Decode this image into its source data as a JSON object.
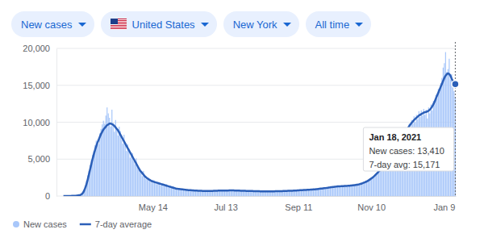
{
  "chart_data": {
    "type": "bar",
    "categories": [
      null,
      null,
      null,
      null,
      null,
      null,
      null,
      null,
      null,
      null,
      null,
      null,
      null,
      null,
      null,
      null,
      null,
      null,
      null,
      null,
      null,
      null,
      null,
      null,
      null,
      null,
      null,
      null,
      null,
      null,
      null,
      null,
      null,
      null,
      null,
      null,
      null,
      null,
      null,
      null,
      null,
      null,
      null,
      null,
      null,
      null,
      null,
      null,
      null,
      null,
      null,
      null,
      null,
      null,
      null,
      null,
      null,
      null,
      null,
      null,
      null,
      null,
      null,
      null,
      null,
      null,
      null,
      null,
      null,
      null,
      null,
      null,
      null,
      null,
      "May 14",
      null,
      null,
      null,
      null,
      null,
      null,
      null,
      null,
      null,
      null,
      null,
      null,
      null,
      null,
      null,
      null,
      null,
      null,
      null,
      null,
      null,
      null,
      null,
      null,
      null,
      null,
      null,
      null,
      null,
      null,
      null,
      null,
      null,
      null,
      null,
      null,
      null,
      null,
      null,
      null,
      null,
      null,
      null,
      null,
      null,
      null,
      null,
      null,
      null,
      null,
      null,
      null,
      null,
      null,
      null,
      null,
      null,
      null,
      null,
      "Jul 13",
      null,
      null,
      null,
      null,
      null,
      null,
      null,
      null,
      null,
      null,
      null,
      null,
      null,
      null,
      null,
      null,
      null,
      null,
      null,
      null,
      null,
      null,
      null,
      null,
      null,
      null,
      null,
      null,
      null,
      null,
      null,
      null,
      null,
      null,
      null,
      null,
      null,
      null,
      null,
      null,
      null,
      null,
      null,
      null,
      null,
      null,
      null,
      null,
      null,
      null,
      null,
      null,
      null,
      null,
      null,
      null,
      null,
      null,
      null,
      "Sep 11",
      null,
      null,
      null,
      null,
      null,
      null,
      null,
      null,
      null,
      null,
      null,
      null,
      null,
      null,
      null,
      null,
      null,
      null,
      null,
      null,
      null,
      null,
      null,
      null,
      null,
      null,
      null,
      null,
      null,
      null,
      null,
      null,
      null,
      null,
      null,
      null,
      null,
      null,
      null,
      null,
      null,
      null,
      null,
      null,
      null,
      null,
      null,
      null,
      null,
      null,
      null,
      null,
      null,
      null,
      null,
      null,
      null,
      null,
      null,
      "Nov 10",
      null,
      null,
      null,
      null,
      null,
      null,
      null,
      null,
      null,
      null,
      null,
      null,
      null,
      null,
      null,
      null,
      null,
      null,
      null,
      null,
      null,
      null,
      null,
      null,
      null,
      null,
      null,
      null,
      null,
      null,
      null,
      null,
      null,
      null,
      null,
      null,
      null,
      null,
      null,
      null,
      null,
      null,
      null,
      null,
      null,
      null,
      null,
      null,
      null,
      null,
      null,
      null,
      null,
      null,
      null,
      null,
      null,
      null,
      null,
      "Jan 9",
      null,
      null,
      null,
      null,
      null,
      null,
      null,
      null,
      null
    ],
    "series": [
      {
        "name": "New cases",
        "type": "bar",
        "color": "#a8c7fa",
        "values": [
          0,
          0,
          0,
          1,
          2,
          8,
          16,
          20,
          30,
          40,
          50,
          60,
          80,
          130,
          190,
          330,
          520,
          900,
          1400,
          2100,
          2800,
          3400,
          4200,
          4900,
          5600,
          6100,
          6900,
          7500,
          7200,
          7000,
          8500,
          9100,
          9700,
          10200,
          9800,
          10900,
          12000,
          11200,
          10600,
          9400,
          11700,
          9900,
          8700,
          10300,
          9000,
          8200,
          9400,
          8800,
          7600,
          7100,
          8300,
          6900,
          6100,
          7000,
          6400,
          5200,
          5900,
          5800,
          4700,
          4300,
          5100,
          4200,
          3500,
          3700,
          3100,
          2700,
          3400,
          2800,
          2300,
          2200,
          2500,
          2300,
          1900,
          1800,
          2200,
          2100,
          1700,
          1600,
          1900,
          1800,
          1500,
          1700,
          1600,
          1300,
          1400,
          1600,
          1200,
          1200,
          1400,
          1100,
          1100,
          1300,
          1000,
          900,
          1100,
          1000,
          850,
          900,
          1000,
          800,
          900,
          800,
          780,
          870,
          760,
          820,
          720,
          800,
          700,
          760,
          780,
          690,
          740,
          650,
          760,
          700,
          640,
          720,
          660,
          700,
          620,
          700,
          740,
          650,
          780,
          700,
          680,
          780,
          710,
          760,
          700,
          760,
          780,
          690,
          800,
          720,
          730,
          810,
          740,
          790,
          720,
          770,
          700,
          780,
          710,
          760,
          690,
          740,
          670,
          720,
          660,
          720,
          680,
          650,
          720,
          640,
          700,
          630,
          690,
          620,
          680,
          640,
          610,
          670,
          620,
          660,
          600,
          650,
          610,
          660,
          600,
          660,
          620,
          680,
          610,
          680,
          630,
          700,
          640,
          690,
          640,
          700,
          650,
          720,
          670,
          740,
          690,
          750,
          700,
          760,
          710,
          780,
          730,
          800,
          750,
          820,
          770,
          840,
          790,
          860,
          800,
          880,
          830,
          900,
          850,
          920,
          870,
          950,
          900,
          980,
          930,
          1020,
          970,
          1080,
          1000,
          1110,
          1040,
          1150,
          1090,
          1200,
          1140,
          1250,
          1190,
          1290,
          1220,
          1340,
          1260,
          1370,
          1280,
          1380,
          1290,
          1410,
          1310,
          1420,
          1340,
          1450,
          1360,
          1480,
          1400,
          1510,
          1420,
          1560,
          1480,
          1620,
          1550,
          1720,
          1640,
          1830,
          1760,
          1980,
          1900,
          2180,
          2080,
          2400,
          2300,
          2650,
          2560,
          2950,
          2900,
          3300,
          3200,
          3700,
          3600,
          4100,
          4050,
          4600,
          4500,
          5100,
          4900,
          5500,
          5300,
          5900,
          5600,
          6200,
          6100,
          6800,
          6500,
          7400,
          7200,
          8000,
          7700,
          8700,
          8300,
          9300,
          8800,
          9800,
          9300,
          10300,
          9800,
          10800,
          10000,
          11000,
          10400,
          11500,
          10700,
          11600,
          10900,
          11800,
          11000,
          11700,
          10500,
          12000,
          11200,
          12400,
          11600,
          12900,
          12500,
          13700,
          13200,
          14500,
          14100,
          15300,
          16000,
          17400,
          18000,
          19500,
          16800,
          17200,
          18600,
          15800,
          16500,
          15000,
          14200,
          13410
        ]
      },
      {
        "name": "7-day average",
        "type": "line",
        "color": "#2b5fb8",
        "values": [
          0,
          0,
          1,
          2,
          3,
          5,
          10,
          15,
          20,
          25,
          35,
          50,
          70,
          100,
          150,
          250,
          400,
          700,
          1100,
          1600,
          2200,
          2900,
          3600,
          4300,
          5000,
          5600,
          6200,
          6700,
          7200,
          7600,
          8000,
          8400,
          8700,
          9000,
          9200,
          9400,
          9600,
          9700,
          9800,
          9800,
          9750,
          9650,
          9500,
          9300,
          9100,
          8900,
          8600,
          8300,
          8000,
          7700,
          7400,
          7100,
          6800,
          6500,
          6200,
          5900,
          5600,
          5300,
          5000,
          4700,
          4400,
          4100,
          3800,
          3500,
          3300,
          3100,
          2900,
          2700,
          2550,
          2400,
          2300,
          2200,
          2100,
          2000,
          1950,
          1900,
          1850,
          1800,
          1750,
          1700,
          1650,
          1600,
          1550,
          1500,
          1450,
          1400,
          1350,
          1300,
          1250,
          1200,
          1150,
          1100,
          1050,
          1000,
          980,
          960,
          940,
          920,
          900,
          880,
          860,
          840,
          820,
          800,
          790,
          780,
          770,
          760,
          750,
          740,
          730,
          720,
          710,
          700,
          700,
          690,
          690,
          680,
          680,
          670,
          670,
          670,
          680,
          690,
          700,
          710,
          720,
          720,
          730,
          730,
          730,
          730,
          740,
          740,
          750,
          750,
          750,
          760,
          760,
          760,
          760,
          750,
          750,
          740,
          740,
          730,
          720,
          710,
          700,
          700,
          700,
          690,
          690,
          680,
          680,
          670,
          670,
          660,
          660,
          650,
          650,
          650,
          640,
          640,
          640,
          630,
          630,
          630,
          630,
          630,
          630,
          630,
          640,
          640,
          640,
          650,
          650,
          650,
          660,
          660,
          660,
          670,
          670,
          680,
          690,
          700,
          700,
          710,
          720,
          720,
          730,
          740,
          750,
          760,
          770,
          780,
          790,
          800,
          810,
          820,
          830,
          840,
          850,
          860,
          870,
          880,
          890,
          900,
          920,
          940,
          960,
          980,
          1000,
          1020,
          1040,
          1060,
          1080,
          1100,
          1120,
          1150,
          1180,
          1200,
          1220,
          1240,
          1260,
          1280,
          1300,
          1310,
          1320,
          1330,
          1340,
          1350,
          1360,
          1370,
          1380,
          1390,
          1400,
          1420,
          1440,
          1460,
          1480,
          1500,
          1530,
          1560,
          1600,
          1650,
          1700,
          1760,
          1830,
          1900,
          1980,
          2070,
          2170,
          2280,
          2400,
          2530,
          2670,
          2820,
          2980,
          3150,
          3330,
          3520,
          3720,
          3930,
          4150,
          4380,
          4620,
          4870,
          5100,
          5300,
          5500,
          5650,
          5800,
          6000,
          6250,
          6500,
          6800,
          7100,
          7400,
          7700,
          8000,
          8300,
          8600,
          8900,
          9200,
          9450,
          9700,
          9900,
          10100,
          10300,
          10450,
          10600,
          10750,
          10900,
          11000,
          11100,
          11200,
          11300,
          11350,
          11400,
          11450,
          11550,
          11700,
          11900,
          12150,
          12450,
          12800,
          13200,
          13600,
          14000,
          14400,
          14800,
          15200,
          15600,
          16000,
          16300,
          16500,
          16600,
          16500,
          16300,
          15900,
          15600,
          15350,
          15171
        ]
      }
    ],
    "ylim": [
      0,
      20000
    ],
    "yticks": [
      0,
      {
        "value": 5000,
        "label": "5,000"
      },
      {
        "value": 10000,
        "label": "10,000"
      },
      {
        "value": 15000,
        "label": "15,000"
      },
      {
        "value": 20000,
        "label": "20,000"
      }
    ],
    "grid": true,
    "legend": "bottom-left",
    "annotations": [
      {
        "date": "Jan 18, 2021",
        "lines": [
          "New cases: 13,410",
          "7-day avg: 15,171"
        ]
      }
    ]
  },
  "controls": [
    "New cases",
    "United States",
    "New York",
    "All time"
  ]
}
